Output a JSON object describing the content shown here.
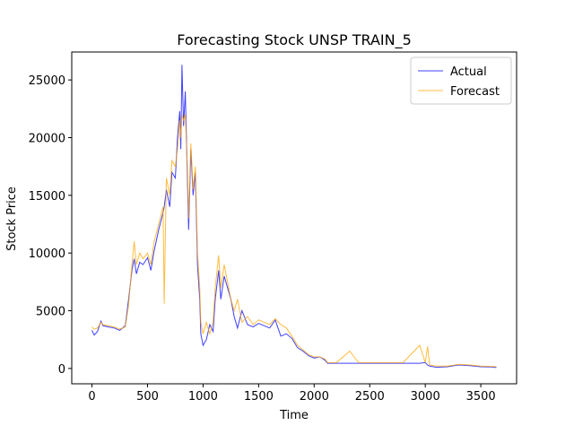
{
  "chart_data": {
    "type": "line",
    "title": "Forecasting Stock UNSP TRAIN_5",
    "x_label": "Time",
    "y_label": "Stock Price",
    "x": [
      0,
      20,
      50,
      80,
      100,
      150,
      200,
      250,
      300,
      330,
      360,
      380,
      400,
      430,
      460,
      500,
      530,
      560,
      600,
      640,
      650,
      670,
      700,
      720,
      750,
      770,
      790,
      800,
      810,
      825,
      840,
      860,
      870,
      890,
      910,
      930,
      950,
      970,
      980,
      1000,
      1030,
      1060,
      1090,
      1110,
      1140,
      1160,
      1190,
      1220,
      1250,
      1280,
      1310,
      1350,
      1400,
      1450,
      1500,
      1550,
      1600,
      1650,
      1700,
      1750,
      1800,
      1850,
      1900,
      1950,
      2000,
      2050,
      2100,
      2120,
      2200,
      2320,
      2400,
      2600,
      2800,
      2950,
      3000,
      3020,
      3040,
      3100,
      3200,
      3300,
      3400,
      3500,
      3600,
      3640
    ],
    "series": [
      {
        "name": "Actual",
        "color": "#0000ff",
        "values": [
          3300,
          2900,
          3200,
          4100,
          3700,
          3600,
          3500,
          3300,
          3700,
          6000,
          8500,
          9500,
          8200,
          9200,
          9000,
          9600,
          8500,
          10200,
          12000,
          13500,
          14000,
          15500,
          14000,
          17000,
          16500,
          20000,
          22300,
          19000,
          26300,
          21000,
          24000,
          16000,
          12000,
          19000,
          15000,
          17000,
          9000,
          6000,
          3000,
          2000,
          2500,
          3800,
          3200,
          6000,
          8500,
          6000,
          8000,
          7000,
          6000,
          4500,
          3500,
          5000,
          3800,
          3600,
          3900,
          3700,
          3500,
          4200,
          2800,
          3000,
          2600,
          1800,
          1500,
          1100,
          900,
          1000,
          700,
          450,
          450,
          450,
          450,
          450,
          450,
          450,
          500,
          300,
          200,
          100,
          150,
          300,
          250,
          150,
          120,
          80
        ]
      },
      {
        "name": "Forecast",
        "color": "#ffa500",
        "values": [
          3600,
          3400,
          3500,
          4000,
          3800,
          3700,
          3600,
          3400,
          3600,
          5500,
          9000,
          11000,
          9000,
          10000,
          9500,
          10000,
          9000,
          11000,
          12500,
          14000,
          5600,
          16500,
          15000,
          18000,
          17500,
          19000,
          21500,
          20000,
          22000,
          21500,
          22000,
          17000,
          13000,
          19500,
          15500,
          17500,
          10000,
          7000,
          4000,
          3000,
          4000,
          3000,
          4000,
          7000,
          9800,
          7000,
          9000,
          7500,
          6000,
          5000,
          6000,
          4000,
          4500,
          3800,
          4200,
          4000,
          3800,
          4300,
          3800,
          3500,
          2800,
          2000,
          1600,
          1200,
          1000,
          1000,
          800,
          500,
          500,
          1500,
          500,
          500,
          500,
          2000,
          500,
          1900,
          300,
          200,
          200,
          350,
          300,
          200,
          180,
          150
        ]
      }
    ],
    "xlim": [
      -182,
      3822
    ],
    "ylim": [
      -1330,
      27420
    ],
    "xticks": [
      0,
      500,
      1000,
      1500,
      2000,
      2500,
      3000,
      3500
    ],
    "yticks": [
      0,
      5000,
      10000,
      15000,
      20000,
      25000
    ],
    "legend": "upper right",
    "grid": false
  }
}
